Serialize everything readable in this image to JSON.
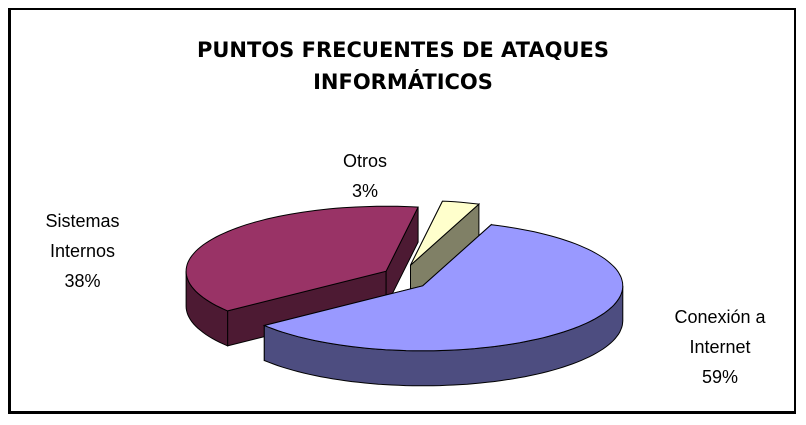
{
  "chart_data": {
    "type": "pie",
    "title": "PUNTOS FRECUENTES DE ATAQUES INFORMÁTICOS",
    "categories": [
      "Conexión a Internet",
      "Sistemas Internos",
      "Otros"
    ],
    "values": [
      59,
      38,
      3
    ],
    "value_labels": [
      "59%",
      "38%",
      "3%"
    ],
    "colors": [
      "#9999ff",
      "#993366",
      "#ffffcc"
    ]
  }
}
